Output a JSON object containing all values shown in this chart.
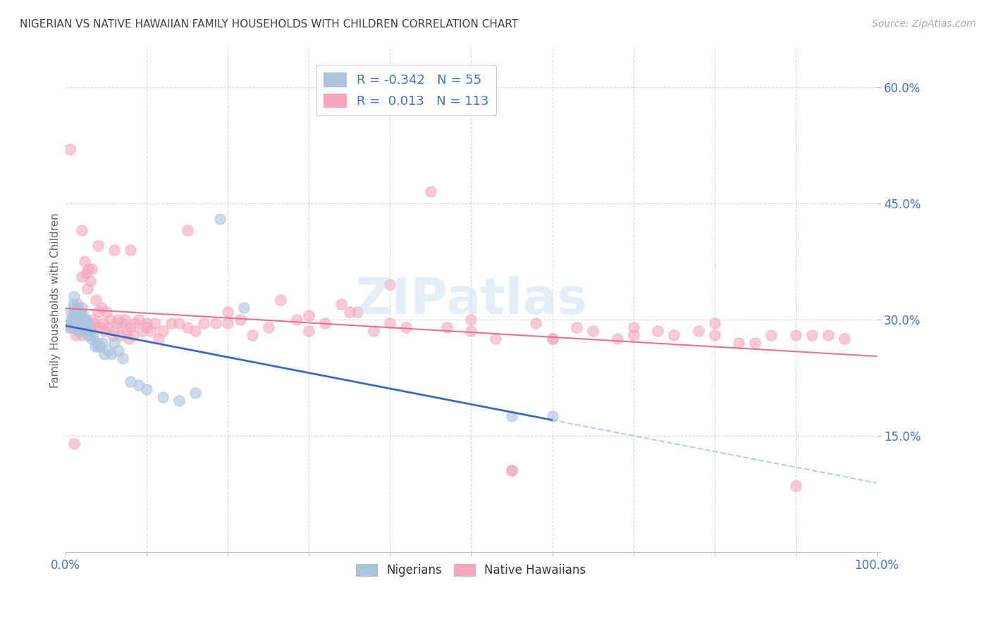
{
  "title": "NIGERIAN VS NATIVE HAWAIIAN FAMILY HOUSEHOLDS WITH CHILDREN CORRELATION CHART",
  "source": "Source: ZipAtlas.com",
  "ylabel": "Family Households with Children",
  "xlim": [
    0,
    1.0
  ],
  "ylim": [
    0,
    0.65
  ],
  "ytick_positions": [
    0,
    0.15,
    0.3,
    0.45,
    0.6
  ],
  "ytick_labels": [
    "",
    "15.0%",
    "30.0%",
    "45.0%",
    "60.0%"
  ],
  "xtick_positions": [
    0,
    0.1,
    0.2,
    0.3,
    0.4,
    0.5,
    0.6,
    0.7,
    0.8,
    0.9,
    1.0
  ],
  "xtick_labels": [
    "0.0%",
    "",
    "",
    "",
    "",
    "",
    "",
    "",
    "",
    "",
    "100.0%"
  ],
  "nigerian_R": -0.342,
  "nigerian_N": 55,
  "hawaiian_R": 0.013,
  "hawaiian_N": 113,
  "nigerian_color": "#aac4e0",
  "hawaiian_color": "#f5a8bc",
  "nigerian_line_color": "#3a6abf",
  "hawaiian_line_color": "#e87090",
  "dashed_line_color": "#b0d0ea",
  "background_color": "#ffffff",
  "grid_color": "#d8d8d8",
  "title_color": "#404040",
  "axis_label_color": "#4472c4",
  "ylabel_color": "#666666",
  "source_color": "#aaaaaa",
  "watermark": "ZIPatlas",
  "watermark_color": "#c8dff0",
  "legend_edge_color": "#cccccc",
  "nig_x": [
    0.003,
    0.005,
    0.006,
    0.007,
    0.008,
    0.009,
    0.01,
    0.01,
    0.01,
    0.011,
    0.012,
    0.013,
    0.014,
    0.015,
    0.015,
    0.016,
    0.017,
    0.018,
    0.018,
    0.019,
    0.02,
    0.02,
    0.021,
    0.022,
    0.022,
    0.023,
    0.024,
    0.025,
    0.026,
    0.027,
    0.028,
    0.03,
    0.032,
    0.034,
    0.036,
    0.038,
    0.04,
    0.042,
    0.045,
    0.048,
    0.052,
    0.056,
    0.06,
    0.065,
    0.07,
    0.08,
    0.09,
    0.1,
    0.12,
    0.14,
    0.16,
    0.19,
    0.22,
    0.55,
    0.6
  ],
  "nig_y": [
    0.29,
    0.295,
    0.31,
    0.3,
    0.295,
    0.32,
    0.305,
    0.315,
    0.33,
    0.29,
    0.295,
    0.31,
    0.3,
    0.285,
    0.315,
    0.295,
    0.305,
    0.295,
    0.31,
    0.285,
    0.3,
    0.315,
    0.29,
    0.295,
    0.305,
    0.295,
    0.3,
    0.285,
    0.29,
    0.295,
    0.28,
    0.285,
    0.275,
    0.28,
    0.265,
    0.27,
    0.265,
    0.265,
    0.27,
    0.255,
    0.26,
    0.255,
    0.27,
    0.26,
    0.25,
    0.22,
    0.215,
    0.21,
    0.2,
    0.195,
    0.205,
    0.43,
    0.315,
    0.175,
    0.175
  ],
  "haw_x": [
    0.005,
    0.006,
    0.008,
    0.009,
    0.01,
    0.01,
    0.012,
    0.013,
    0.014,
    0.015,
    0.015,
    0.016,
    0.017,
    0.018,
    0.02,
    0.02,
    0.022,
    0.023,
    0.025,
    0.025,
    0.027,
    0.028,
    0.03,
    0.03,
    0.032,
    0.034,
    0.035,
    0.037,
    0.038,
    0.04,
    0.042,
    0.044,
    0.046,
    0.048,
    0.05,
    0.052,
    0.055,
    0.058,
    0.06,
    0.063,
    0.065,
    0.068,
    0.07,
    0.073,
    0.075,
    0.078,
    0.08,
    0.083,
    0.085,
    0.09,
    0.095,
    0.1,
    0.105,
    0.11,
    0.115,
    0.12,
    0.13,
    0.14,
    0.15,
    0.16,
    0.17,
    0.185,
    0.2,
    0.215,
    0.23,
    0.25,
    0.265,
    0.285,
    0.3,
    0.32,
    0.34,
    0.36,
    0.38,
    0.4,
    0.42,
    0.45,
    0.47,
    0.5,
    0.53,
    0.55,
    0.58,
    0.6,
    0.63,
    0.65,
    0.68,
    0.7,
    0.73,
    0.75,
    0.78,
    0.8,
    0.83,
    0.85,
    0.87,
    0.9,
    0.92,
    0.94,
    0.96,
    0.02,
    0.04,
    0.06,
    0.08,
    0.1,
    0.15,
    0.2,
    0.3,
    0.4,
    0.5,
    0.6,
    0.7,
    0.8,
    0.9,
    0.35,
    0.55
  ],
  "haw_y": [
    0.52,
    0.29,
    0.295,
    0.305,
    0.3,
    0.14,
    0.28,
    0.305,
    0.295,
    0.3,
    0.32,
    0.285,
    0.31,
    0.295,
    0.355,
    0.28,
    0.295,
    0.375,
    0.36,
    0.295,
    0.34,
    0.365,
    0.35,
    0.29,
    0.365,
    0.3,
    0.295,
    0.325,
    0.29,
    0.31,
    0.29,
    0.315,
    0.295,
    0.285,
    0.31,
    0.29,
    0.3,
    0.28,
    0.285,
    0.295,
    0.3,
    0.28,
    0.295,
    0.3,
    0.285,
    0.275,
    0.29,
    0.28,
    0.295,
    0.3,
    0.285,
    0.29,
    0.285,
    0.295,
    0.275,
    0.285,
    0.295,
    0.295,
    0.29,
    0.285,
    0.295,
    0.295,
    0.31,
    0.3,
    0.28,
    0.29,
    0.325,
    0.3,
    0.305,
    0.295,
    0.32,
    0.31,
    0.285,
    0.345,
    0.29,
    0.465,
    0.29,
    0.3,
    0.275,
    0.105,
    0.295,
    0.275,
    0.29,
    0.285,
    0.275,
    0.29,
    0.285,
    0.28,
    0.285,
    0.295,
    0.27,
    0.27,
    0.28,
    0.085,
    0.28,
    0.28,
    0.275,
    0.415,
    0.395,
    0.39,
    0.39,
    0.295,
    0.415,
    0.295,
    0.285,
    0.295,
    0.285,
    0.275,
    0.28,
    0.28,
    0.28,
    0.31,
    0.105
  ]
}
